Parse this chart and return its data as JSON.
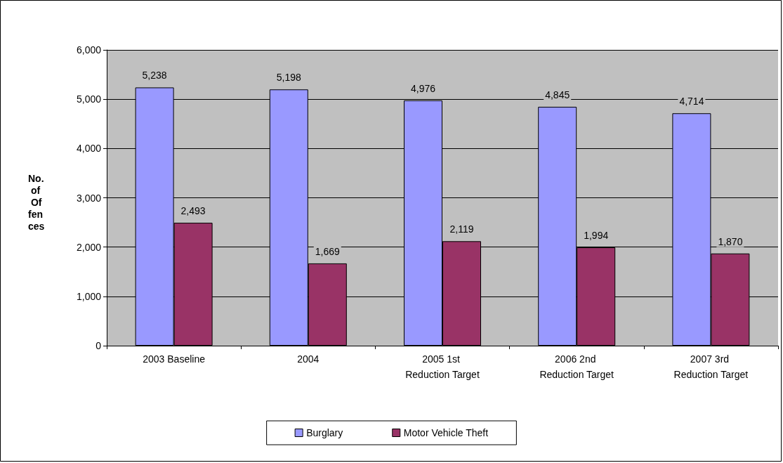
{
  "chart_data": {
    "type": "bar",
    "ylabel": "No. of Offences",
    "categories": [
      "2003 Baseline",
      "2004",
      "2005 1st Reduction Target",
      "2006 2nd Reduction Target",
      "2007 3rd Reduction Target"
    ],
    "series": [
      {
        "name": "Burglary",
        "color": "#9999ff",
        "values": [
          5238,
          5198,
          4976,
          4845,
          4714
        ],
        "value_labels": [
          "5,238",
          "5,198",
          "4,976",
          "4,845",
          "4,714"
        ]
      },
      {
        "name": "Motor Vehicle Theft",
        "color": "#993366",
        "values": [
          2493,
          1669,
          2119,
          1994,
          1870
        ],
        "value_labels": [
          "2,493",
          "1,669",
          "2,119",
          "1,994",
          "1,870"
        ]
      }
    ],
    "ylim": [
      0,
      6000
    ],
    "yticks": [
      0,
      {
        "value": 1000,
        "label": "1,000"
      },
      {
        "value": 2000,
        "label": "2,000"
      },
      {
        "value": 3000,
        "label": "3,000"
      },
      {
        "value": 4000,
        "label": "4,000"
      },
      {
        "value": 5000,
        "label": "5,000"
      },
      {
        "value": 6000,
        "label": "6,000"
      }
    ],
    "grid": "y",
    "legend": "bottom"
  }
}
